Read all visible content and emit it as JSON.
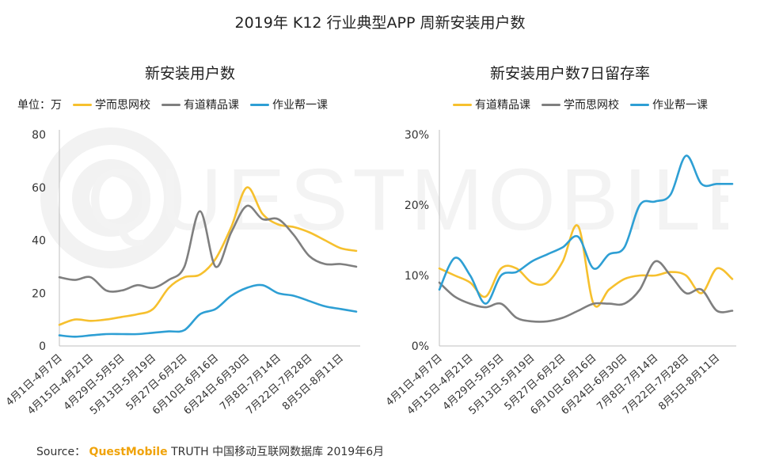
{
  "title": "2019年 K12 行业典型APP 周新安装用户数",
  "watermark": "QUESTMOBILE",
  "source": {
    "label": "Source：",
    "brand": "QuestMobile",
    "text": "TRUTH 中国移动互联网数据库 2019年6月"
  },
  "colors": {
    "xueersi": "#f6c02e",
    "youdao": "#7f7f7f",
    "zuoye": "#2e9fd4",
    "axis": "#bfbfbf",
    "brand": "#f0a30a"
  },
  "chart_data": [
    {
      "type": "line",
      "title": "新安装用户数",
      "unit_label": "单位：万",
      "ylim": [
        0,
        80
      ],
      "yticks": [
        "0",
        "20",
        "40",
        "60",
        "80"
      ],
      "grid": false,
      "legend_position": "top",
      "categories": [
        "4月1日-4月7日",
        "4月15日-4月21日",
        "4月29日-5月5日",
        "5月13日-5月19日",
        "5月27日-6月2日",
        "6月10日-6月16日",
        "6月24日-6月30日",
        "7月8日-7月14日",
        "7月22日-7月28日",
        "8月5日-8月11日"
      ],
      "x": [
        0,
        1,
        2,
        3,
        4,
        5,
        6,
        7,
        8,
        9,
        10,
        11,
        12,
        13,
        14,
        15,
        16,
        17,
        18,
        19
      ],
      "series": [
        {
          "name": "学而思网校",
          "color_key": "xueersi",
          "values": [
            8,
            10,
            9.5,
            10,
            11,
            12,
            14,
            22,
            26,
            27,
            33,
            45,
            60,
            50,
            46,
            45,
            43,
            40,
            37,
            36
          ]
        },
        {
          "name": "有道精品课",
          "color_key": "youdao",
          "values": [
            26,
            25,
            26,
            21,
            21,
            23,
            22,
            25,
            30,
            51,
            30,
            43,
            53,
            48,
            48,
            42,
            34,
            31,
            31,
            30
          ]
        },
        {
          "name": "作业帮一课",
          "color_key": "zuoye",
          "values": [
            4,
            3.5,
            4,
            4.5,
            4.5,
            4.5,
            5,
            5.5,
            6,
            12,
            14,
            19,
            22,
            23,
            20,
            19,
            17,
            15,
            14,
            13
          ]
        }
      ]
    },
    {
      "type": "line",
      "title": "新安装用户数7日留存率",
      "ylim": [
        0,
        30
      ],
      "yticks": [
        "0%",
        "10%",
        "20%",
        "30%"
      ],
      "grid": false,
      "legend_position": "top",
      "categories": [
        "4月1日-4月7日",
        "4月15日-4月21日",
        "4月29日-5月5日",
        "5月13日-5月19日",
        "5月27日-6月2日",
        "6月10日-6月16日",
        "6月24日-6月30日",
        "7月8日-7月14日",
        "7月22日-7月28日",
        "8月5日-8月11日"
      ],
      "x": [
        0,
        1,
        2,
        3,
        4,
        5,
        6,
        7,
        8,
        9,
        10,
        11,
        12,
        13,
        14,
        15,
        16,
        17,
        18,
        19
      ],
      "series": [
        {
          "name": "有道精品课",
          "color_key": "xueersi",
          "values": [
            11,
            10,
            9,
            7,
            11,
            11,
            9,
            9,
            12,
            17,
            6,
            8,
            9.5,
            10,
            10,
            10.5,
            10,
            7.5,
            11,
            9.5
          ]
        },
        {
          "name": "学而思网校",
          "color_key": "youdao",
          "values": [
            9,
            7,
            6,
            5.5,
            6,
            4,
            3.5,
            3.5,
            4,
            5,
            6,
            6,
            6,
            8,
            12,
            10,
            7.5,
            8,
            5,
            5
          ]
        },
        {
          "name": "作业帮一课",
          "color_key": "zuoye",
          "values": [
            8,
            12.5,
            10,
            6,
            10,
            10.5,
            12,
            13,
            14,
            15.5,
            11,
            13,
            14,
            20,
            20.5,
            21.5,
            27,
            23,
            23,
            23
          ]
        }
      ]
    }
  ]
}
